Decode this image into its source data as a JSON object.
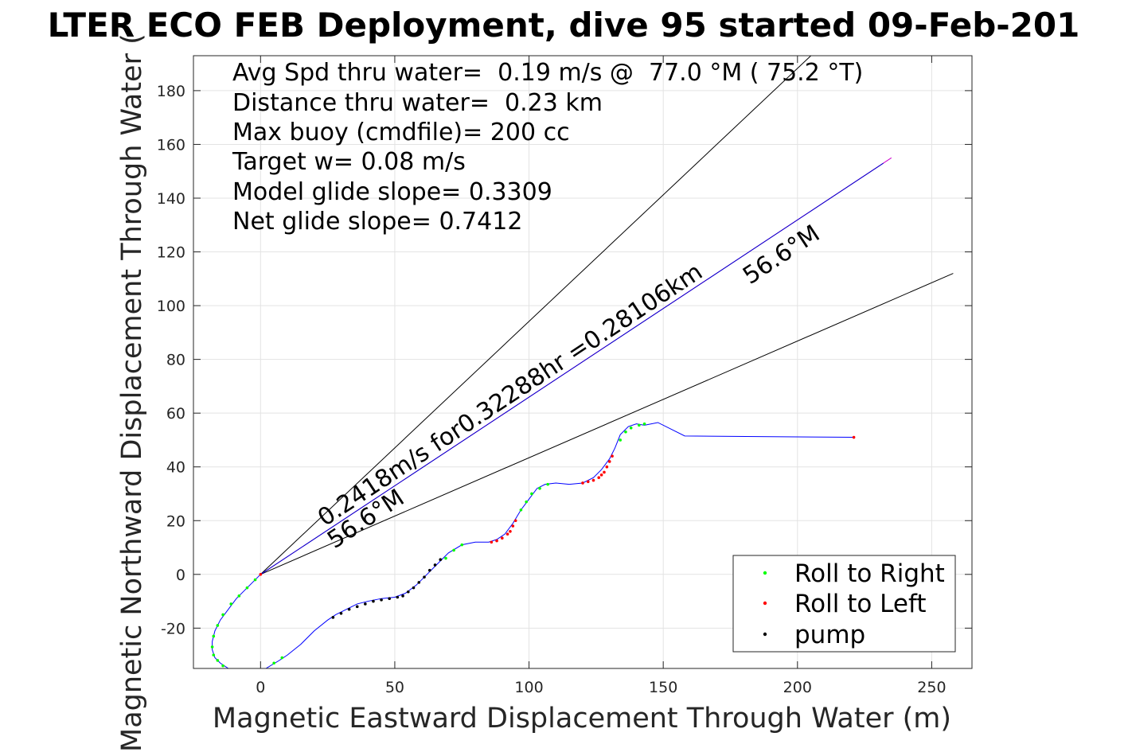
{
  "chart_data": {
    "type": "scatter",
    "title": "LTER ECO FEB Deployment, dive 95 started 09-Feb-201",
    "xlabel": "Magnetic Eastward Displacement Through Water (m)",
    "ylabel": "Magnetic Northward Displacement Through Water (",
    "xlim": [
      -25,
      265
    ],
    "ylim": [
      -35,
      193
    ],
    "xticks": [
      0,
      50,
      100,
      150,
      200,
      250
    ],
    "yticks": [
      -20,
      0,
      20,
      40,
      60,
      80,
      100,
      120,
      140,
      160,
      180
    ],
    "xtick_labels": [
      "0",
      "50",
      "100",
      "150",
      "200",
      "250"
    ],
    "ytick_labels": [
      "-20",
      "0",
      "20",
      "40",
      "60",
      "80",
      "100",
      "120",
      "140",
      "160",
      "180"
    ],
    "grid": true,
    "legend_position": "bottom-right",
    "info_lines": [
      "Avg Spd thru water=  0.19 m/s @  77.0 °M ( 75.2 °T)",
      "Distance thru water=  0.23 km",
      "Max buoy (cmdfile)= 200 cc",
      "Target w= 0.08 m/s",
      "Model glide slope= 0.3309",
      "Net glide slope= 0.7412"
    ],
    "annotations": {
      "speed_label": "0.2418m/s for0.32288hr =0.28106km",
      "heading_label_lower": "56.6°M",
      "heading_label_upper": "56.6°M"
    },
    "lines": [
      {
        "name": "heading-cone-upper",
        "color": "#000000",
        "x": [
          0,
          205
        ],
        "y": [
          0,
          193
        ]
      },
      {
        "name": "heading-cone-lower",
        "color": "#000000",
        "x": [
          0,
          258
        ],
        "y": [
          0,
          112
        ]
      },
      {
        "name": "heading-line",
        "color": "#cc00cc",
        "x": [
          0,
          235
        ],
        "y": [
          0,
          155
        ]
      },
      {
        "name": "heading-line-inner",
        "color": "#0000cc",
        "x": [
          0,
          232
        ],
        "y": [
          0,
          153
        ]
      }
    ],
    "track": {
      "color": "#0000ff",
      "x": [
        0,
        -3,
        -6,
        -9,
        -12,
        -15,
        -17,
        -18,
        -18,
        -17,
        -15,
        -12,
        -8,
        -3,
        2,
        7,
        10,
        15,
        20,
        25,
        28,
        32,
        36,
        40,
        45,
        50,
        54,
        58,
        62,
        66,
        70,
        75,
        80,
        85,
        88,
        91,
        94,
        97,
        100,
        103,
        106,
        110,
        115,
        120,
        124,
        127,
        130,
        132,
        134,
        137,
        140,
        143,
        148,
        158,
        221
      ],
      "y": [
        0,
        -3,
        -6,
        -9,
        -13,
        -17,
        -21,
        -25,
        -28,
        -31,
        -33,
        -35,
        -36,
        -36,
        -35,
        -32,
        -30,
        -26,
        -21,
        -17,
        -15,
        -13,
        -11,
        -10,
        -9,
        -8.5,
        -7,
        -4,
        0,
        4,
        8,
        11,
        12,
        12,
        13,
        15,
        19,
        24,
        28,
        32,
        33.5,
        34,
        33.5,
        34,
        36,
        39,
        43,
        47,
        52,
        55,
        56,
        55.5,
        56.5,
        51.5,
        51
      ]
    },
    "series": [
      {
        "name": "Roll to Right",
        "color": "#00ff00",
        "x": [
          -2,
          -5,
          -8,
          -11,
          -14,
          -16,
          -17.5,
          -18,
          -17.5,
          -16,
          -14,
          -11,
          -7,
          -3,
          1,
          5,
          8,
          69,
          72,
          75,
          97,
          99,
          101,
          104,
          107,
          134,
          136,
          138,
          141,
          143
        ],
        "y": [
          -2,
          -5,
          -8,
          -11,
          -15,
          -19,
          -23,
          -27,
          -30,
          -32,
          -34,
          -35.5,
          -36,
          -36,
          -35.5,
          -33,
          -31,
          6,
          9,
          11,
          24,
          27,
          30,
          32,
          33.5,
          50,
          53,
          54.5,
          55.5,
          56
        ]
      },
      {
        "name": "Roll to Left",
        "color": "#ff0000",
        "x": [
          0,
          86,
          88,
          90,
          92,
          93,
          94,
          95,
          120,
          122,
          124,
          126,
          127,
          128,
          129,
          130,
          131,
          221
        ],
        "y": [
          0,
          12,
          12.5,
          13.5,
          15,
          16,
          18,
          20,
          34,
          34.5,
          35,
          36,
          37,
          38,
          40,
          42,
          44,
          51
        ]
      },
      {
        "name": "pump",
        "color": "#000000",
        "x": [
          27,
          30,
          33,
          36,
          39,
          42,
          45,
          48,
          51,
          53,
          55,
          57,
          59,
          61,
          63,
          65,
          67
        ],
        "y": [
          -16,
          -14.5,
          -13,
          -12,
          -11,
          -10,
          -9.5,
          -9,
          -8.5,
          -8,
          -6.5,
          -5,
          -3,
          -1,
          1.5,
          3.5,
          5.5
        ]
      }
    ]
  }
}
